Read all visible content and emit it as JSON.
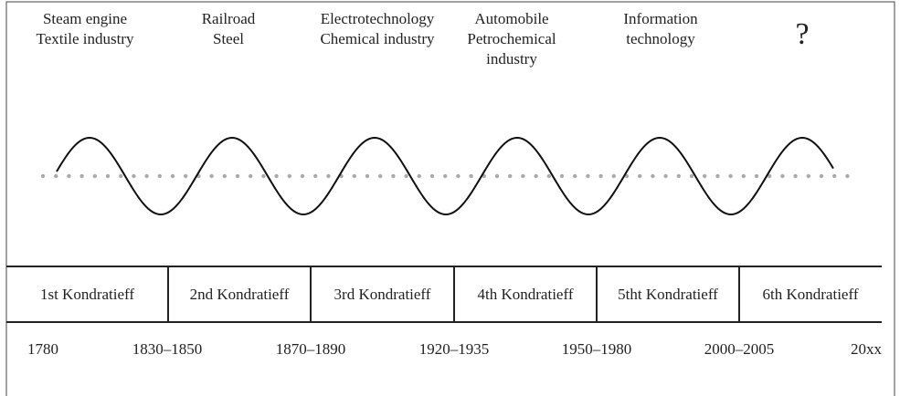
{
  "technologies": [
    [
      "Steam engine",
      "Textile industry"
    ],
    [
      "Railroad",
      "Steel"
    ],
    [
      "Electrotechnology",
      "Chemical industry"
    ],
    [
      "Automobile",
      "Petrochemical",
      "industry"
    ],
    [
      "Information",
      "technology"
    ],
    [
      "?"
    ]
  ],
  "cycles": [
    "1st Kondratieff",
    "2nd Kondratieff",
    "3rd Kondratieff",
    "4th Kondratieff",
    "5tht Kondratieff",
    "6th Kondratieff"
  ],
  "dates": [
    "1780",
    "1830–1850",
    "1870–1890",
    "1920–1935",
    "1950–1980",
    "2000–2005",
    "20xx"
  ]
}
